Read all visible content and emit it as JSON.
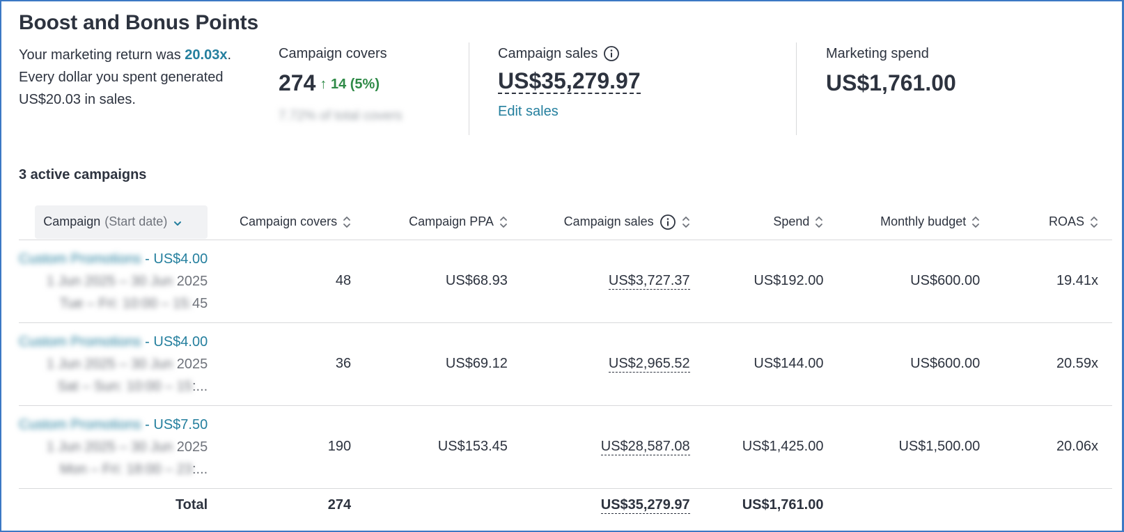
{
  "page": {
    "title": "Boost and Bonus Points"
  },
  "summary": {
    "text_before": "Your marketing return was ",
    "roas": "20.03x",
    "text_after": ". Every dollar you spent generated US$20.03 in sales."
  },
  "metrics": {
    "covers": {
      "label": "Campaign covers",
      "value": "274",
      "delta": "↑ 14 (5%)",
      "subtext": "7.72% of total covers"
    },
    "sales": {
      "label": "Campaign sales",
      "value": "US$35,279.97",
      "edit_label": "Edit sales"
    },
    "spend": {
      "label": "Marketing spend",
      "value": "US$1,761.00"
    }
  },
  "section": {
    "title": "3 active campaigns"
  },
  "table": {
    "headers": {
      "campaign": "Campaign",
      "start_date": "(Start date)",
      "covers": "Campaign covers",
      "ppa": "Campaign PPA",
      "sales": "Campaign sales",
      "spend": "Spend",
      "budget": "Monthly budget",
      "roas": "ROAS"
    },
    "rows": [
      {
        "name_blur": "Custom Promotions",
        "name_suffix": " - US$4.00",
        "date_blur": "1 Jun 2025 – 30 Jun",
        "date_suffix": " 2025",
        "time_blur": "Tue – Fri: 10:00 – 15:",
        "time_suffix": "45",
        "covers": "48",
        "ppa": "US$68.93",
        "sales": "US$3,727.37",
        "spend": "US$192.00",
        "budget": "US$600.00",
        "roas": "19.41x"
      },
      {
        "name_blur": "Custom Promotions",
        "name_suffix": " - US$4.00",
        "date_blur": "1 Jun 2025 – 30 Jun",
        "date_suffix": " 2025",
        "time_blur": "Sat – Sun: 10:00 – 15",
        "time_suffix": ":...",
        "covers": "36",
        "ppa": "US$69.12",
        "sales": "US$2,965.52",
        "spend": "US$144.00",
        "budget": "US$600.00",
        "roas": "20.59x"
      },
      {
        "name_blur": "Custom Promotions",
        "name_suffix": " - US$7.50",
        "date_blur": "1 Jun 2025 – 30 Jun",
        "date_suffix": " 2025",
        "time_blur": "Mon – Fri: 18:00 – 23",
        "time_suffix": ":...",
        "covers": "190",
        "ppa": "US$153.45",
        "sales": "US$28,587.08",
        "spend": "US$1,425.00",
        "budget": "US$1,500.00",
        "roas": "20.06x"
      }
    ],
    "total": {
      "label": "Total",
      "covers": "274",
      "sales": "US$35,279.97",
      "spend": "US$1,761.00"
    }
  },
  "colors": {
    "accent": "#247f9e",
    "positive": "#2f8a47",
    "text": "#2d333f",
    "muted": "#6f737b",
    "border": "#d8d9db",
    "frame": "#3b78c4"
  }
}
